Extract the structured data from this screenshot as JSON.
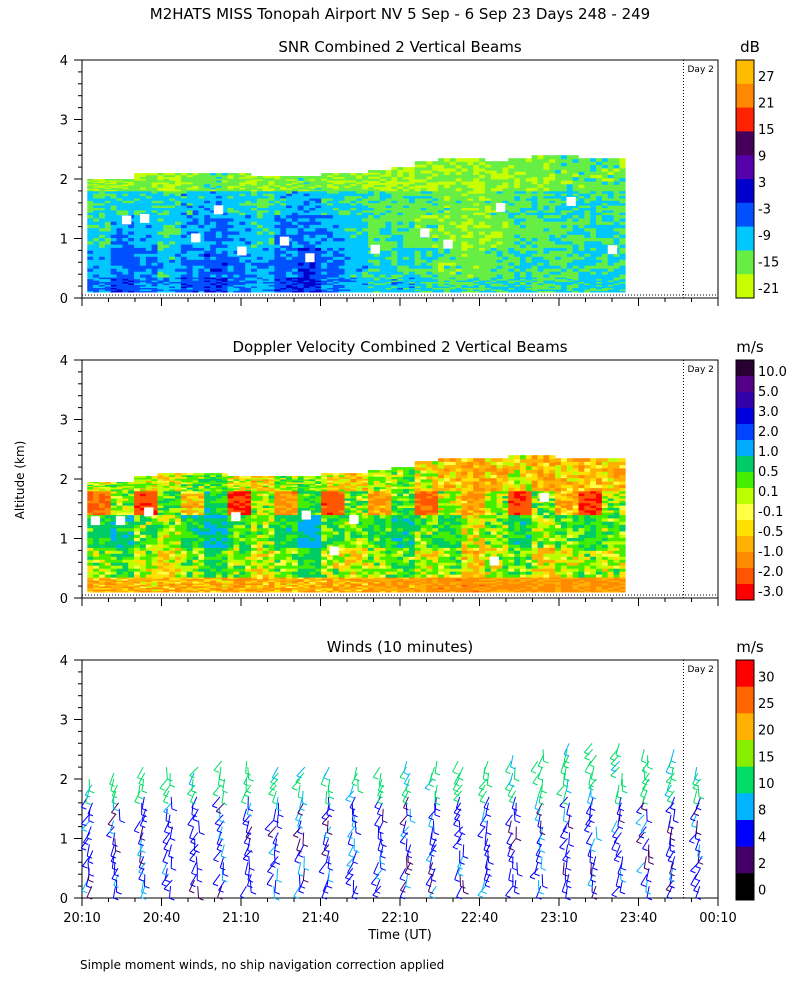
{
  "title": "M2HATS MISS Tonopah Airport NV   5 Sep -  6 Sep 23 Days 248 - 249",
  "footnote": "Simple moment winds, no ship navigation correction applied",
  "colors": {
    "snr": [
      "#c8ff00",
      "#66ee44",
      "#00c8ff",
      "#0050ff",
      "#0000cc",
      "#5500aa",
      "#44005a",
      "#ff2200",
      "#ff8800",
      "#ffbb00"
    ],
    "doppler": [
      "#ff0000",
      "#ff5500",
      "#ff8c00",
      "#ffb000",
      "#ffe000",
      "#ffff44",
      "#bbff00",
      "#44ee00",
      "#00cc66",
      "#00aaff",
      "#0044ff",
      "#0000dd",
      "#3300aa",
      "#550088",
      "#2a0033"
    ],
    "winds": [
      "#000000",
      "#440066",
      "#0000ff",
      "#00b4ff",
      "#00dd66",
      "#88ee00",
      "#ffb000",
      "#ff6600",
      "#ff0000"
    ]
  },
  "chart_data": [
    {
      "type": "heatmap",
      "title": "SNR Combined 2 Vertical Beams",
      "xlabel": "",
      "ylabel": "",
      "units": "dB",
      "day_label": "Day 2",
      "x_ticks": [
        "20:10",
        "20:40",
        "21:10",
        "21:40",
        "22:10",
        "22:40",
        "23:10",
        "23:40",
        "00:10"
      ],
      "y_ticks": [
        0,
        1,
        2,
        3,
        4
      ],
      "ylim": [
        0,
        4
      ],
      "colorbar_ticks": [
        27,
        21,
        15,
        9,
        3,
        -3,
        -9,
        -15,
        -21
      ],
      "colorbar_range": [
        -24,
        33
      ],
      "top_altitude_km": [
        2.0,
        2.0,
        2.1,
        2.1,
        2.1,
        2.1,
        2.1,
        2.05,
        2.05,
        2.05,
        2.1,
        2.1,
        2.15,
        2.2,
        2.3,
        2.35,
        2.35,
        2.3,
        2.35,
        2.4,
        2.4,
        2.35,
        2.35
      ],
      "values": [
        [
          -6,
          -2,
          -4,
          -8,
          -3,
          -1,
          -5,
          -7,
          -2,
          0,
          -4,
          -8,
          -10,
          -9,
          -11,
          -12,
          -14,
          -12,
          -10,
          -12,
          -11,
          -10,
          -10
        ],
        [
          -8,
          -4,
          -6,
          -9,
          -5,
          -3,
          -6,
          -8,
          -4,
          -2,
          -6,
          -9,
          -11,
          -11,
          -13,
          -15,
          -16,
          -14,
          -12,
          -13,
          -12,
          -11,
          -11
        ],
        [
          -10,
          -7,
          -8,
          -11,
          -7,
          -5,
          -8,
          -10,
          -6,
          -5,
          -8,
          -10,
          -12,
          -13,
          -15,
          -16,
          -18,
          -16,
          -14,
          -14,
          -13,
          -12,
          -12
        ],
        [
          -12,
          -10,
          -10,
          -12,
          -9,
          -8,
          -10,
          -12,
          -9,
          -8,
          -10,
          -12,
          -13,
          -14,
          -14,
          -15,
          -17,
          -15,
          -13,
          -13,
          -12,
          -12,
          -12
        ],
        [
          -18,
          -17,
          -17,
          -18,
          -16,
          -15,
          -17,
          -18,
          -16,
          -15,
          -17,
          -18,
          -19,
          -19,
          -18,
          -17,
          -18,
          -17,
          -16,
          -16,
          -15,
          -15,
          -15
        ]
      ]
    },
    {
      "type": "heatmap",
      "title": "Doppler Velocity Combined 2 Vertical Beams",
      "xlabel": "",
      "ylabel": "Altitude (km)",
      "units": "m/s",
      "day_label": "Day 2",
      "x_ticks": [
        "20:10",
        "20:40",
        "21:10",
        "21:40",
        "22:10",
        "22:40",
        "23:10",
        "23:40",
        "00:10"
      ],
      "y_ticks": [
        0,
        1,
        2,
        3,
        4
      ],
      "ylim": [
        0,
        4
      ],
      "colorbar_ticks": [
        "10.0",
        "5.0",
        "3.0",
        "2.0",
        "1.0",
        "0.5",
        "0.1",
        "-0.1",
        "-0.5",
        "-1.0",
        "-2.0",
        "-3.0"
      ],
      "top_altitude_km": [
        1.95,
        1.95,
        2.05,
        2.1,
        2.1,
        2.1,
        2.05,
        2.05,
        2.05,
        2.05,
        2.1,
        2.1,
        2.15,
        2.2,
        2.3,
        2.35,
        2.35,
        2.35,
        2.4,
        2.4,
        2.35,
        2.35,
        2.35
      ],
      "values": [
        [
          -0.6,
          -0.5,
          -0.4,
          -0.6,
          -0.5,
          -0.4,
          -0.6,
          -0.6,
          -0.5,
          -0.5,
          -0.6,
          -0.6,
          -0.7,
          -0.8,
          -0.9,
          -1.0,
          -1.0,
          -0.9,
          -0.9,
          -1.0,
          -0.9,
          -0.9,
          -0.9
        ],
        [
          0.3,
          0.6,
          0.2,
          -0.2,
          0.4,
          0.8,
          0.3,
          0.0,
          0.5,
          0.9,
          0.2,
          -0.1,
          0.3,
          0.6,
          0.1,
          0.4,
          -0.3,
          0.2,
          0.5,
          -0.2,
          0.1,
          0.3,
          0.2
        ],
        [
          0.8,
          1.2,
          0.5,
          0.2,
          1.0,
          1.5,
          0.6,
          0.3,
          1.1,
          1.8,
          0.7,
          0.4,
          0.8,
          1.2,
          0.5,
          0.9,
          0.0,
          0.4,
          1.0,
          0.3,
          0.6,
          0.8,
          0.5
        ],
        [
          -1.5,
          0.4,
          -2.2,
          0.6,
          -0.3,
          1.0,
          -2.5,
          0.3,
          -1.0,
          0.8,
          -2.0,
          0.5,
          -0.8,
          0.6,
          -1.8,
          0.2,
          -0.5,
          0.3,
          -2.2,
          0.4,
          -0.6,
          -2.5,
          0.3
        ],
        [
          0.2,
          0.3,
          0.1,
          0.0,
          0.4,
          0.6,
          0.1,
          -0.2,
          0.3,
          0.5,
          0.0,
          -0.3,
          0.2,
          0.4,
          -0.1,
          -0.4,
          -0.6,
          -0.4,
          0.0,
          -0.6,
          -0.3,
          -0.5,
          -0.4
        ]
      ]
    },
    {
      "type": "wind_barbs",
      "title": "Winds (10 minutes)",
      "xlabel": "Time (UT)",
      "ylabel": "",
      "units": "m/s",
      "day_label": "Day 2",
      "x_ticks": [
        "20:10",
        "20:40",
        "21:10",
        "21:40",
        "22:10",
        "22:40",
        "23:10",
        "23:40",
        "00:10"
      ],
      "y_ticks": [
        0,
        1,
        2,
        3,
        4
      ],
      "ylim": [
        0,
        4
      ],
      "colorbar_ticks": [
        30,
        25,
        20,
        15,
        10,
        8,
        4,
        2,
        0
      ],
      "colorbar_range": [
        0,
        33
      ],
      "profile_times": [
        "20:13",
        "20:23",
        "20:33",
        "20:43",
        "20:53",
        "21:03",
        "21:13",
        "21:23",
        "21:33",
        "21:43",
        "21:53",
        "22:03",
        "22:13",
        "22:23",
        "22:33",
        "22:43",
        "22:53",
        "23:03",
        "23:13",
        "23:23",
        "23:33",
        "23:43",
        "23:53",
        "00:03"
      ],
      "profile_tops_km": [
        2.1,
        2.2,
        2.3,
        2.3,
        2.3,
        2.4,
        2.4,
        2.3,
        2.3,
        2.3,
        2.3,
        2.3,
        2.4,
        2.4,
        2.4,
        2.4,
        2.5,
        2.6,
        2.7,
        2.7,
        2.7,
        2.6,
        2.6,
        2.3
      ]
    }
  ]
}
